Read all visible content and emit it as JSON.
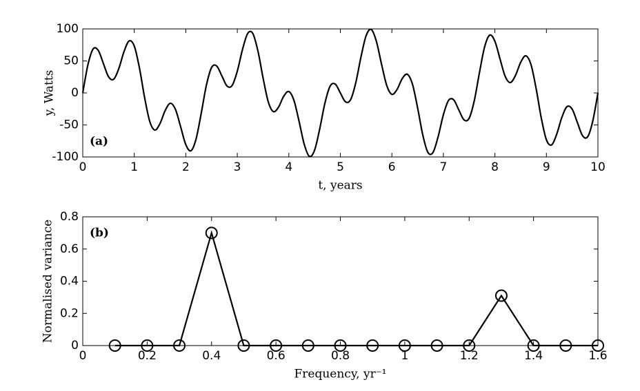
{
  "chart_data": [
    {
      "type": "line",
      "annotation": "(a)",
      "xlabel": "t, years",
      "ylabel": "y, Watts",
      "color": "#000000",
      "x": [
        0,
        0.1,
        0.2,
        0.3,
        0.4,
        0.5,
        0.6,
        0.7,
        0.8,
        0.9,
        1,
        1.1,
        1.2,
        1.3,
        1.4,
        1.5,
        1.6,
        1.7,
        1.8,
        1.9,
        2,
        2.1,
        2.2,
        2.3,
        2.4,
        2.5,
        2.6,
        2.7,
        2.8,
        2.9,
        3,
        3.1,
        3.2,
        3.3,
        3.4,
        3.5,
        3.6,
        3.7,
        3.8,
        3.9,
        4,
        4.1,
        4.2,
        4.3,
        4.4,
        4.5,
        4.6,
        4.7,
        4.8,
        4.9,
        5,
        5.1,
        5.2,
        5.3,
        5.4,
        5.5,
        5.6,
        5.7,
        5.8,
        5.9,
        6,
        6.1,
        6.2,
        6.3,
        6.4,
        6.5,
        6.6,
        6.7,
        6.8,
        6.9,
        7,
        7.1,
        7.2,
        7.3,
        7.4,
        7.5,
        7.6,
        7.7,
        7.8,
        7.9,
        8,
        8.1,
        8.2,
        8.3,
        8.4,
        8.5,
        8.6,
        8.7,
        8.8,
        8.9,
        9,
        9.1,
        9.2,
        9.3,
        9.4,
        9.5,
        9.6,
        9.7,
        9.8,
        9.9,
        10
      ],
      "values": [
        0,
        43.9,
        68.6,
        66.5,
        46.0,
        25.4,
        21.4,
        38.1,
        64.4,
        81.2,
        73.2,
        39.1,
        -7.0,
        -44.4,
        -58.0,
        -47.7,
        -27.4,
        -16.2,
        -25.9,
        -52.9,
        -80.7,
        -90.3,
        -71.8,
        -31.6,
        12.1,
        39.6,
        42.1,
        26.6,
        10.8,
        11.7,
        34.1,
        67.7,
        92.7,
        93.0,
        65.6,
        23.3,
        -13.6,
        -29.2,
        -22.2,
        -5.3,
        2.2,
        -11.8,
        -44.8,
        -80.5,
        -99.2,
        -89.4,
        -56.0,
        -16.1,
        10.4,
        13.9,
        0,
        -13.9,
        -10.4,
        16.1,
        56.0,
        89.4,
        99.2,
        80.5,
        44.8,
        11.8,
        -2.2,
        5.3,
        22.2,
        29.2,
        13.6,
        -23.3,
        -65.6,
        -93.0,
        -92.7,
        -67.7,
        -34.1,
        -11.7,
        -10.8,
        -26.6,
        -42.1,
        -39.6,
        -12.1,
        31.6,
        71.8,
        90.3,
        80.7,
        52.9,
        25.9,
        16.2,
        27.4,
        47.7,
        58.0,
        44.4,
        7.0,
        -39.1,
        -73.2,
        -81.2,
        -64.4,
        -38.1,
        -21.4,
        -25.4,
        -46.0,
        -66.5,
        -68.6,
        -43.9,
        0
      ],
      "xlim": [
        0,
        10
      ],
      "xticks": [
        0,
        1,
        2,
        3,
        4,
        5,
        6,
        7,
        8,
        9,
        10
      ],
      "ylim": [
        -100,
        100
      ],
      "yticks": [
        -100,
        -50,
        0,
        50,
        100
      ]
    },
    {
      "type": "line",
      "annotation": "(b)",
      "xlabel": "Frequency, yr⁻¹",
      "ylabel": "Normalised variance",
      "color": "#000000",
      "marker": "circle",
      "x": [
        0.1,
        0.2,
        0.3,
        0.4,
        0.5,
        0.6,
        0.7,
        0.8,
        0.9,
        1.0,
        1.1,
        1.2,
        1.3,
        1.4,
        1.5,
        1.6
      ],
      "values": [
        0,
        0,
        0,
        0.7,
        0,
        0,
        0,
        0,
        0,
        0,
        0,
        0,
        0.31,
        0,
        0,
        0
      ],
      "xlim": [
        0,
        1.6
      ],
      "xticks": [
        0,
        0.2,
        0.4,
        0.6,
        0.8,
        1,
        1.2,
        1.4,
        1.6
      ],
      "ylim": [
        0,
        0.8
      ],
      "yticks": [
        0,
        0.2,
        0.4,
        0.6,
        0.8
      ]
    }
  ]
}
